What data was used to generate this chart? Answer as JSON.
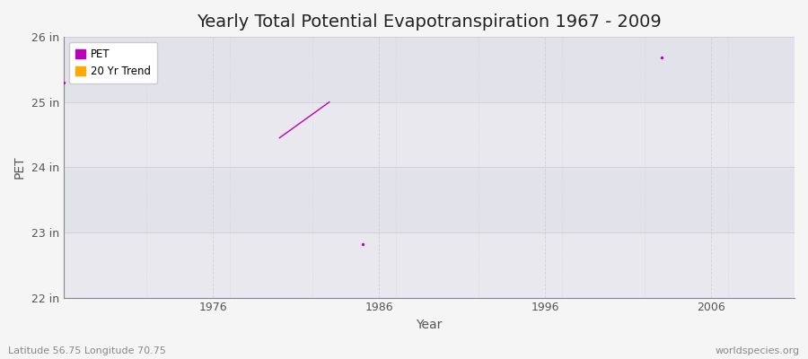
{
  "title": "Yearly Total Potential Evapotranspiration 1967 - 2009",
  "xlabel": "Year",
  "ylabel": "PET",
  "subtitle_lat": "Latitude 56.75 Longitude 70.75",
  "watermark": "worldspecies.org",
  "background_color": "#f5f5f5",
  "plot_bg_color": "#eeeeee",
  "band_color_light": "#ebebeb",
  "band_color_dark": "#e0e0e8",
  "ylim": [
    22,
    26
  ],
  "xlim": [
    1967,
    2011
  ],
  "yticks": [
    22,
    23,
    24,
    25,
    26
  ],
  "ytick_labels": [
    "22 in",
    "23 in",
    "24 in",
    "25 in",
    "26 in"
  ],
  "xticks": [
    1976,
    1986,
    1996,
    2006
  ],
  "pet_color": "#bb00bb",
  "trend_color": "#ffaa00",
  "pet_points": [
    [
      1967,
      25.3
    ],
    [
      1985,
      22.82
    ],
    [
      2003,
      25.68
    ]
  ],
  "trend_line_x": [
    1980,
    1983
  ],
  "trend_line_y": [
    24.45,
    25.0
  ],
  "grid_color": "#cccccc",
  "grid_h_color": "#cccccc",
  "grid_style": "--",
  "grid_alpha": 0.7,
  "title_fontsize": 14,
  "tick_fontsize": 9,
  "label_fontsize": 10,
  "watermark_fontsize": 8,
  "subtitle_fontsize": 8
}
